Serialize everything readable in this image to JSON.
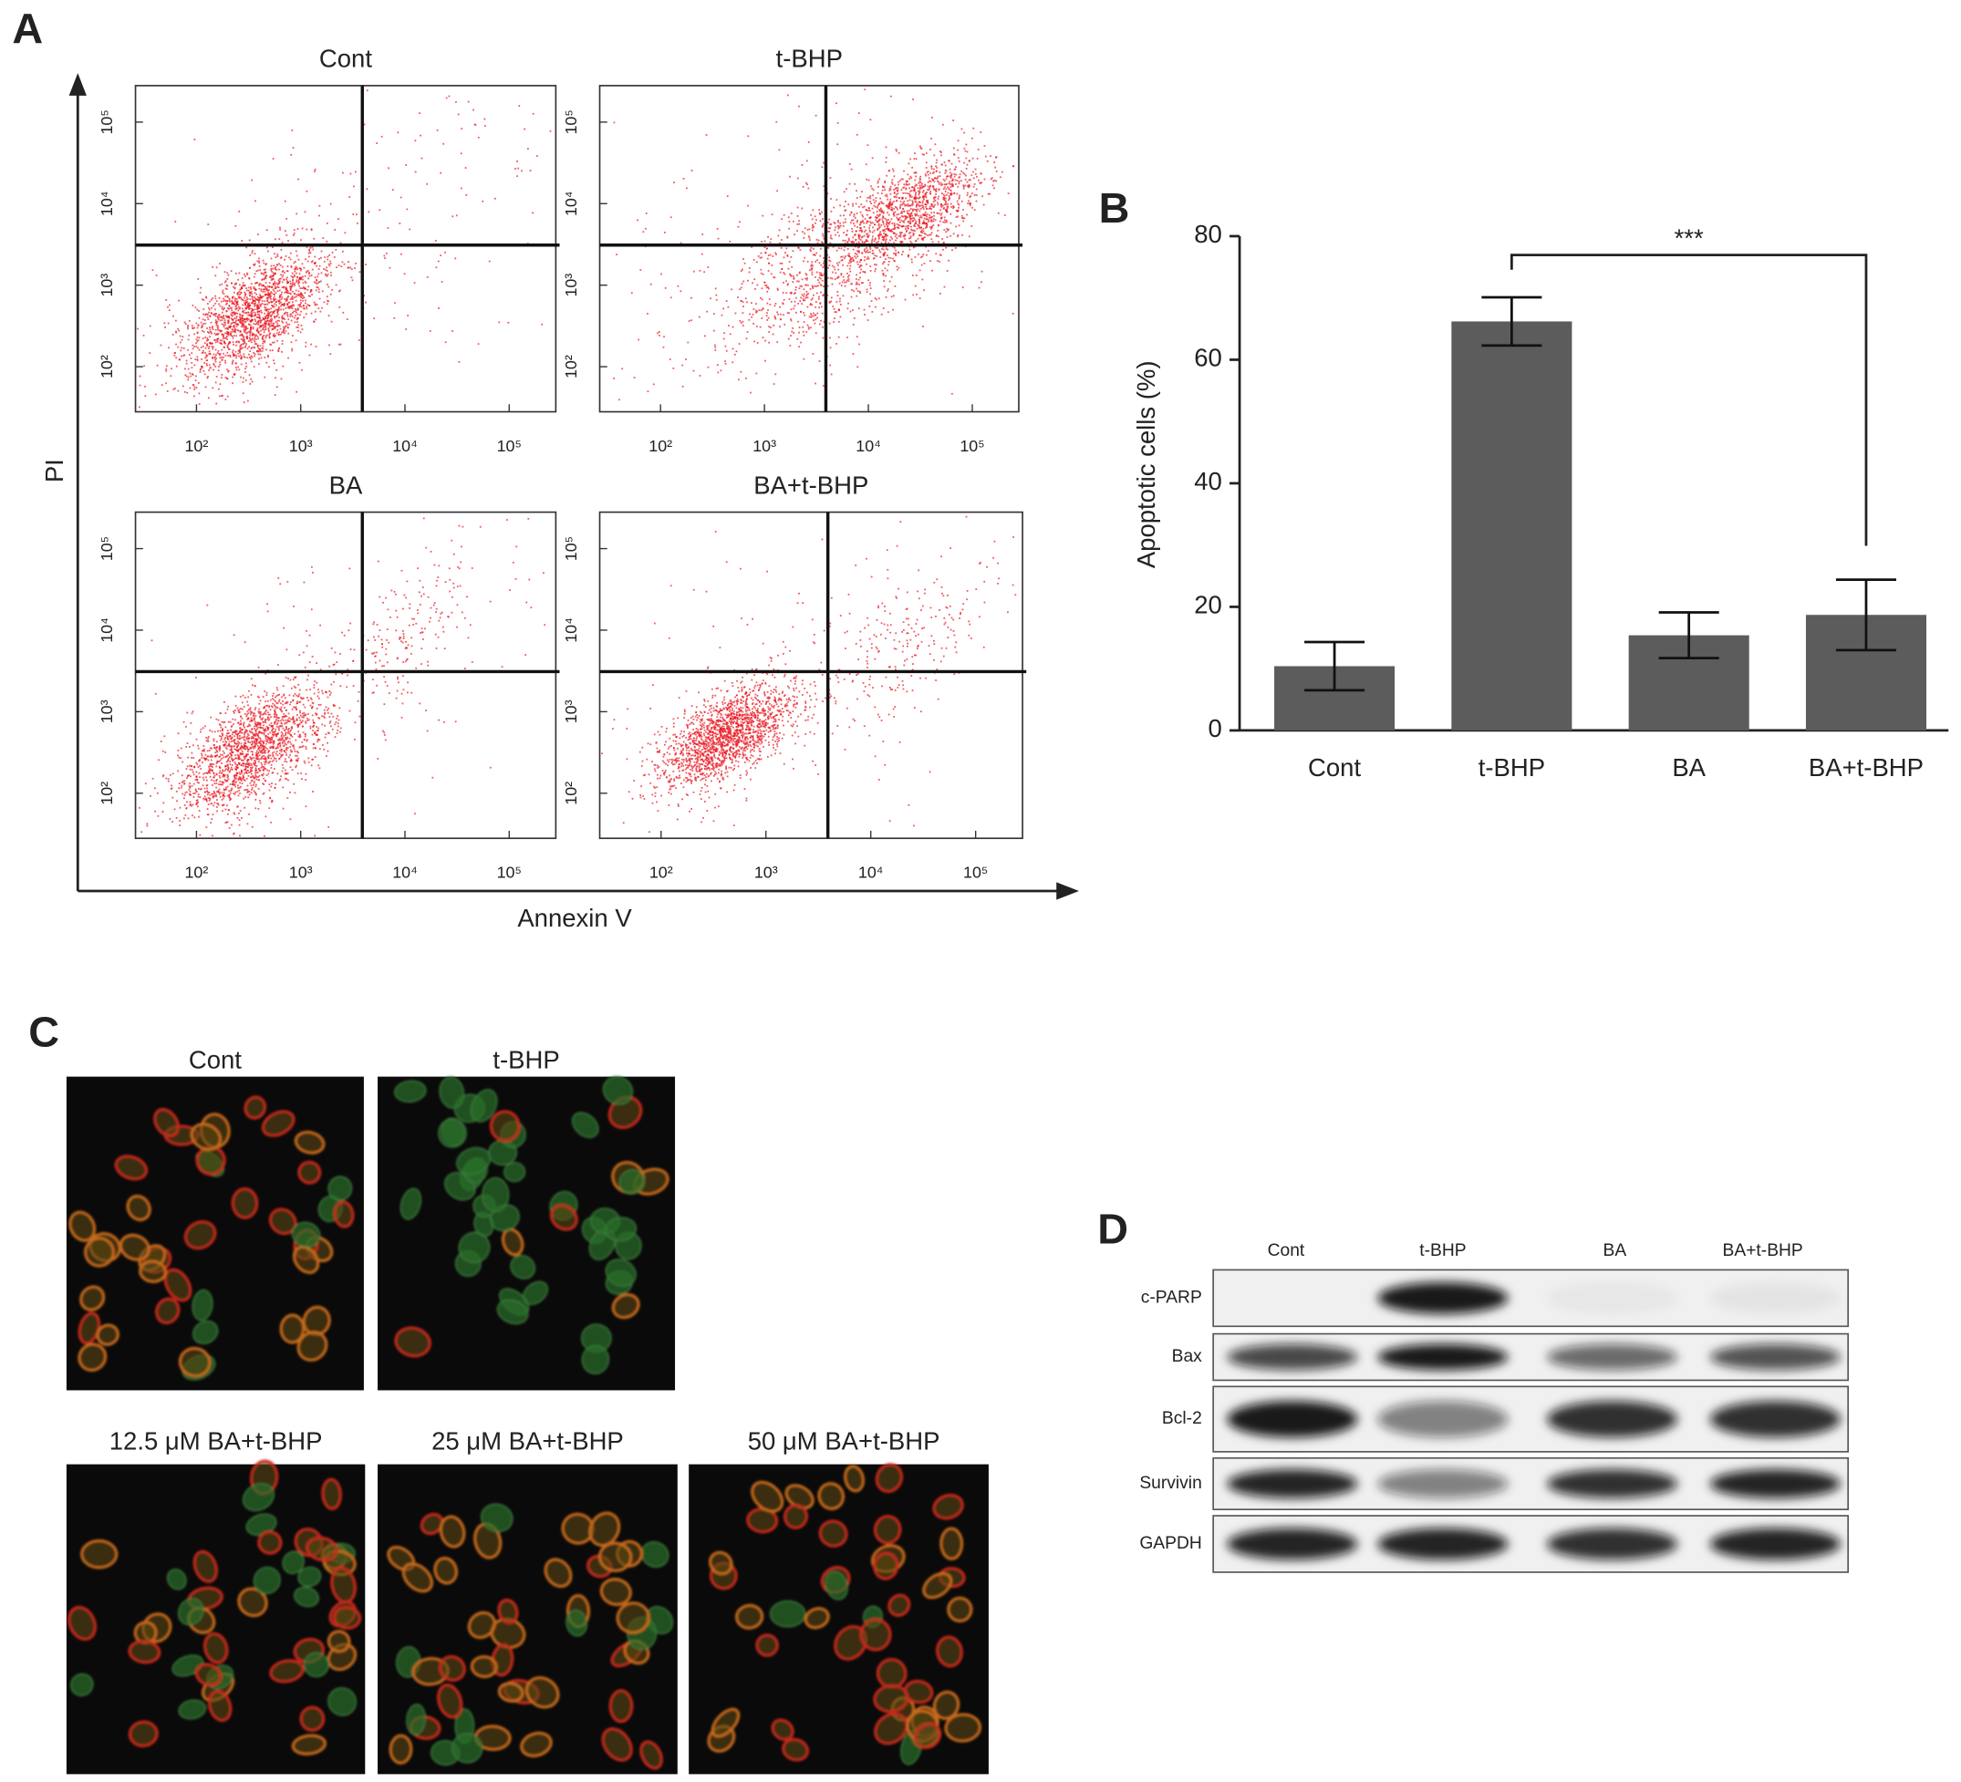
{
  "panel_labels": [
    "A",
    "B",
    "C",
    "D"
  ],
  "flow_axes": {
    "xlabel": "Annexin V",
    "ylabel": "PI"
  },
  "chart_data": [
    {
      "type": "scatter",
      "title": "Cont",
      "xscale": "log",
      "yscale": "log",
      "xlim": [
        26,
        280000
      ],
      "ylim": [
        28,
        280000
      ],
      "xticks": [
        {
          "value": 100,
          "label": "10²"
        },
        {
          "value": 1000,
          "label": "10³"
        },
        {
          "value": 10000,
          "label": "10⁴"
        },
        {
          "value": 100000,
          "label": "10⁵"
        }
      ],
      "yticks": [
        {
          "value": 100,
          "label": "10²"
        },
        {
          "value": 1000,
          "label": "10³"
        },
        {
          "value": 10000,
          "label": "10⁴"
        },
        {
          "value": 100000,
          "label": "10⁵"
        }
      ],
      "gate": {
        "x": 3900,
        "y": 3100
      },
      "color": "#e8141c"
    },
    {
      "type": "scatter",
      "title": "t-BHP",
      "xscale": "log",
      "yscale": "log",
      "xlim": [
        26,
        280000
      ],
      "ylim": [
        28,
        280000
      ],
      "xticks": [
        {
          "value": 100,
          "label": "10²"
        },
        {
          "value": 1000,
          "label": "10³"
        },
        {
          "value": 10000,
          "label": "10⁴"
        },
        {
          "value": 100000,
          "label": "10⁵"
        }
      ],
      "yticks": [
        {
          "value": 100,
          "label": "10²"
        },
        {
          "value": 1000,
          "label": "10³"
        },
        {
          "value": 10000,
          "label": "10⁴"
        },
        {
          "value": 100000,
          "label": "10⁵"
        }
      ],
      "gate": {
        "x": 3900,
        "y": 3100
      },
      "color": "#e8141c"
    },
    {
      "type": "scatter",
      "title": "BA",
      "xscale": "log",
      "yscale": "log",
      "xlim": [
        26,
        280000
      ],
      "ylim": [
        28,
        280000
      ],
      "xticks": [
        {
          "value": 100,
          "label": "10²"
        },
        {
          "value": 1000,
          "label": "10³"
        },
        {
          "value": 10000,
          "label": "10⁴"
        },
        {
          "value": 100000,
          "label": "10⁵"
        }
      ],
      "yticks": [
        {
          "value": 100,
          "label": "10²"
        },
        {
          "value": 1000,
          "label": "10³"
        },
        {
          "value": 10000,
          "label": "10⁴"
        },
        {
          "value": 100000,
          "label": "10⁵"
        }
      ],
      "gate": {
        "x": 3900,
        "y": 3100
      },
      "color": "#e8141c"
    },
    {
      "type": "scatter",
      "title": "BA+t-BHP",
      "xscale": "log",
      "yscale": "log",
      "xlim": [
        26,
        280000
      ],
      "ylim": [
        28,
        280000
      ],
      "xticks": [
        {
          "value": 100,
          "label": "10²"
        },
        {
          "value": 1000,
          "label": "10³"
        },
        {
          "value": 10000,
          "label": "10⁴"
        },
        {
          "value": 100000,
          "label": "10⁵"
        }
      ],
      "yticks": [
        {
          "value": 100,
          "label": "10²"
        },
        {
          "value": 1000,
          "label": "10³"
        },
        {
          "value": 10000,
          "label": "10⁴"
        },
        {
          "value": 100000,
          "label": "10⁵"
        }
      ],
      "gate": {
        "x": 3900,
        "y": 3100
      },
      "color": "#e8141c"
    },
    {
      "type": "bar",
      "ylabel": "Apoptotic cells (%)",
      "categories": [
        "Cont",
        "t-BHP",
        "BA",
        "BA+t-BHP"
      ],
      "values": [
        10.4,
        66.2,
        15.4,
        18.7
      ],
      "errors": [
        3.9,
        3.9,
        3.7,
        5.7
      ],
      "color": "#5c5c5c",
      "ylim": [
        0,
        80
      ],
      "yticks": [
        0,
        20,
        40,
        60,
        80
      ],
      "annotations": [
        {
          "text": "***",
          "between": [
            1,
            3
          ]
        }
      ]
    }
  ],
  "micrographs": {
    "titles": [
      "Cont",
      "t-BHP",
      "12.5 μM BA+t-BHP",
      "25 μM BA+t-BHP",
      "50 μM BA+t-BHP"
    ]
  },
  "western_blot": {
    "lanes": [
      "Cont",
      "t-BHP",
      "BA",
      "BA+t-BHP"
    ],
    "proteins": [
      "c-PARP",
      "Bax",
      "Bcl-2",
      "Survivin",
      "GAPDH"
    ]
  }
}
